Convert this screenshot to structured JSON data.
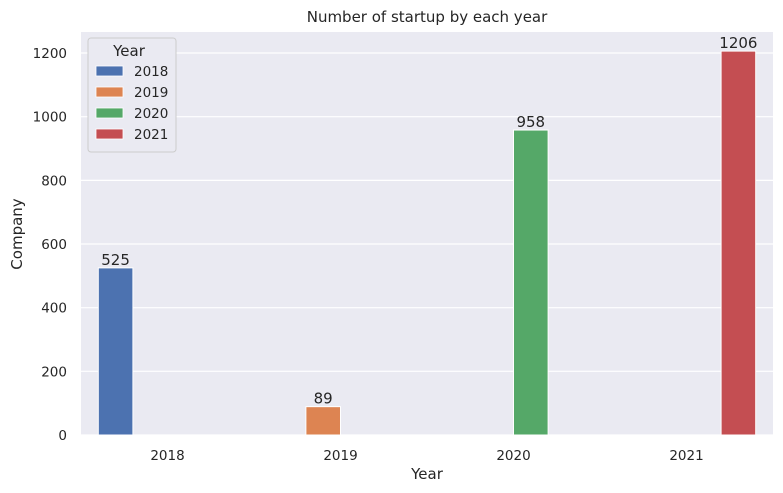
{
  "chart_data": {
    "type": "bar",
    "title": "Number of startup by each year",
    "xlabel": "Year",
    "ylabel": "Company",
    "categories": [
      "2018",
      "2019",
      "2020",
      "2021"
    ],
    "series": [
      {
        "name": "2018",
        "color": "#4c72b0",
        "values": [
          525,
          0,
          0,
          0
        ]
      },
      {
        "name": "2019",
        "color": "#dd8452",
        "values": [
          0,
          89,
          0,
          0
        ]
      },
      {
        "name": "2020",
        "color": "#55a868",
        "values": [
          0,
          0,
          958,
          0
        ]
      },
      {
        "name": "2021",
        "color": "#c44e52",
        "values": [
          0,
          0,
          0,
          1206
        ]
      }
    ],
    "data_labels": [
      "525",
      "89",
      "958",
      "1206"
    ],
    "y_ticks": [
      0,
      200,
      400,
      600,
      800,
      1000,
      1200
    ],
    "ylim": [
      0,
      1266
    ],
    "grid": true,
    "legend": {
      "title": "Year",
      "placement": "top-left"
    },
    "background_color": "#eaeaf2"
  }
}
